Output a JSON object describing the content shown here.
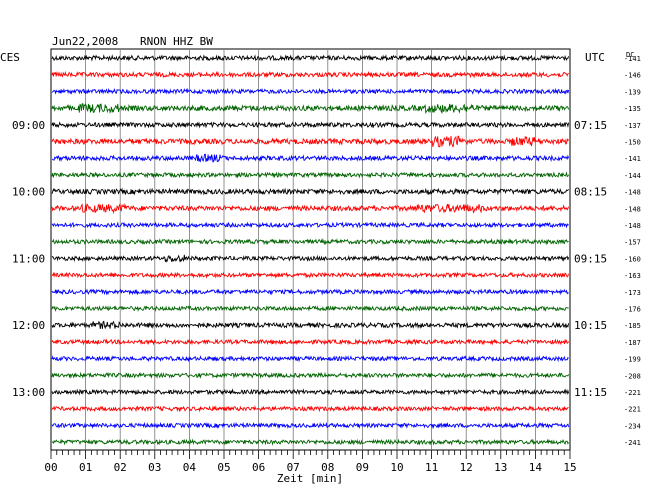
{
  "header": {
    "date": "Jun22,2008",
    "station": "RNON HHZ BW",
    "left_timezone": "CES",
    "right_timezone": "UTC",
    "dc_label": "DC"
  },
  "chart_data": {
    "type": "line",
    "xlabel": "Zeit [min]",
    "xlim": [
      0,
      15
    ],
    "x_ticks": [
      "00",
      "01",
      "02",
      "03",
      "04",
      "05",
      "06",
      "07",
      "08",
      "09",
      "10",
      "11",
      "12",
      "13",
      "14",
      "15"
    ],
    "trace_count": 24,
    "trace_colors": [
      "#000000",
      "#ff0000",
      "#0000ff",
      "#006400"
    ],
    "left_hour_labels": [
      {
        "trace": 4,
        "label": "09:00"
      },
      {
        "trace": 8,
        "label": "10:00"
      },
      {
        "trace": 12,
        "label": "11:00"
      },
      {
        "trace": 16,
        "label": "12:00"
      },
      {
        "trace": 20,
        "label": "13:00"
      }
    ],
    "right_hour_labels": [
      {
        "trace": 4,
        "label": "07:15"
      },
      {
        "trace": 8,
        "label": "08:15"
      },
      {
        "trace": 12,
        "label": "09:15"
      },
      {
        "trace": 16,
        "label": "10:15"
      },
      {
        "trace": 20,
        "label": "11:15"
      }
    ],
    "dc_offsets": [
      "-141",
      "-146",
      "-139",
      "-135",
      "-137",
      "-150",
      "-141",
      "-144",
      "-148",
      "-148",
      "-148",
      "-157",
      "-160",
      "-163",
      "-173",
      "-176",
      "-185",
      "-187",
      "-199",
      "-208",
      "-221",
      "-221",
      "-234",
      "-241"
    ],
    "noise_amplitude": [
      2.2,
      2.2,
      2.0,
      2.6,
      2.2,
      2.6,
      2.2,
      2.0,
      2.4,
      2.4,
      2.0,
      2.0,
      2.0,
      2.0,
      2.0,
      2.0,
      2.2,
      2.0,
      2.0,
      2.0,
      2.0,
      2.0,
      2.0,
      2.0
    ],
    "bursts": [
      {
        "trace": 3,
        "start_min": 0.8,
        "end_min": 2.0,
        "amp": 2.0
      },
      {
        "trace": 3,
        "start_min": 10.8,
        "end_min": 12.2,
        "amp": 2.0
      },
      {
        "trace": 5,
        "start_min": 11.0,
        "end_min": 12.0,
        "amp": 3.0
      },
      {
        "trace": 5,
        "start_min": 13.3,
        "end_min": 14.0,
        "amp": 2.2
      },
      {
        "trace": 6,
        "start_min": 4.2,
        "end_min": 5.0,
        "amp": 1.8
      },
      {
        "trace": 9,
        "start_min": 0.8,
        "end_min": 2.2,
        "amp": 1.8
      },
      {
        "trace": 9,
        "start_min": 10.5,
        "end_min": 12.5,
        "amp": 1.8
      },
      {
        "trace": 12,
        "start_min": 3.3,
        "end_min": 3.9,
        "amp": 1.8
      },
      {
        "trace": 16,
        "start_min": 1.2,
        "end_min": 2.0,
        "amp": 1.6
      }
    ]
  }
}
